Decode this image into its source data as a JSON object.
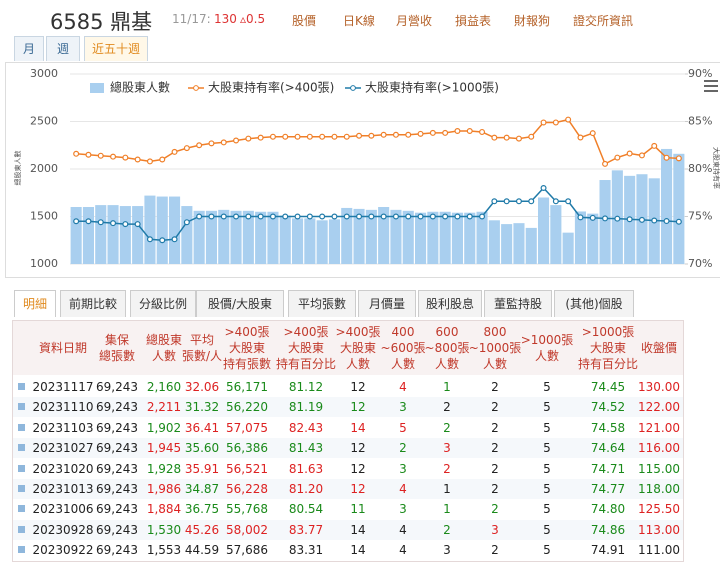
{
  "header": {
    "title": "6585 鼎基",
    "date": "11/17:",
    "price": "130",
    "change": "▵0.5",
    "links": [
      "股價",
      "日K線",
      "月營收",
      "損益表",
      "財報狗",
      "證交所資訊"
    ]
  },
  "period_tabs": [
    "月",
    "週",
    "近五十週"
  ],
  "chart_data": {
    "type": "bar-line",
    "y_label": "總股東人數",
    "y2_label": "大股東持有率",
    "ylim": [
      1000,
      3000
    ],
    "yticks": [
      1000,
      1500,
      2000,
      2500,
      3000
    ],
    "y2lim": [
      70,
      90
    ],
    "y2ticks": [
      {
        "value": 70,
        "label": "70%"
      },
      {
        "value": 75,
        "label": "75%"
      },
      {
        "value": 80,
        "label": "80%"
      },
      {
        "value": 85,
        "label": "85%"
      },
      {
        "value": 90,
        "label": "90%"
      }
    ],
    "series": [
      {
        "name": "總股東人數",
        "type": "bar",
        "color": "#a9cfef",
        "values": [
          1600,
          1600,
          1620,
          1620,
          1610,
          1610,
          1720,
          1710,
          1710,
          1610,
          1560,
          1560,
          1570,
          1560,
          1560,
          1550,
          1550,
          1510,
          1480,
          1480,
          1460,
          1470,
          1590,
          1580,
          1570,
          1600,
          1570,
          1560,
          1540,
          1550,
          1550,
          1540,
          1540,
          1550,
          1460,
          1420,
          1430,
          1380,
          1700,
          1620,
          1330,
          1553,
          1530,
          1884,
          1986,
          1928,
          1945,
          1902,
          2211,
          2160
        ]
      },
      {
        "name": "大股東持有率(>400張)",
        "type": "line",
        "axis": "y2",
        "color": "#f07f28",
        "values": [
          81.6,
          81.5,
          81.4,
          81.3,
          81.2,
          81.0,
          80.8,
          81.0,
          81.8,
          82.2,
          82.5,
          82.7,
          82.8,
          83.0,
          83.2,
          83.3,
          83.4,
          83.4,
          83.4,
          83.4,
          83.4,
          83.4,
          83.4,
          83.5,
          83.5,
          83.6,
          83.6,
          83.6,
          83.7,
          83.8,
          83.8,
          84.0,
          84.0,
          83.9,
          83.3,
          83.3,
          83.2,
          83.4,
          84.9,
          84.9,
          85.2,
          83.31,
          83.77,
          80.54,
          81.2,
          81.63,
          81.43,
          82.43,
          81.19,
          81.12
        ]
      },
      {
        "name": "大股東持有率(>1000張)",
        "type": "line",
        "axis": "y2",
        "color": "#1f7aa8",
        "values": [
          74.5,
          74.5,
          74.4,
          74.3,
          74.2,
          74.2,
          72.6,
          72.5,
          72.6,
          74.4,
          75.0,
          75.0,
          75.0,
          75.0,
          75.0,
          75.0,
          75.0,
          75.0,
          75.0,
          75.0,
          75.0,
          75.0,
          75.0,
          75.0,
          75.0,
          75.0,
          75.0,
          75.0,
          75.0,
          75.0,
          75.0,
          75.0,
          75.0,
          75.0,
          76.6,
          76.6,
          76.6,
          76.6,
          78.0,
          76.6,
          76.6,
          74.91,
          74.86,
          74.8,
          74.77,
          74.71,
          74.64,
          74.58,
          74.52,
          74.45
        ]
      }
    ]
  },
  "table_tabs": [
    "明細",
    "前期比較",
    "分級比例",
    "股價/大股東",
    "平均張數",
    "月價量",
    "股利股息",
    "董監持股",
    "(其他)個股"
  ],
  "table": {
    "columns": [
      "資料日期",
      "集保\n總張數",
      "總股東\n人數",
      "平均\n張數/人",
      ">400張\n大股東\n持有張數",
      ">400張\n大股東\n持有百分比",
      ">400張\n大股東\n人數",
      "400\n~600張\n人數",
      "600\n~800張\n人數",
      "800\n~1000張\n人數",
      ">1000張\n人數",
      ">1000張\n大股東\n持有百分比",
      "收盤價"
    ],
    "rows": [
      [
        "20231117",
        "69,243",
        "2,160",
        "32.06",
        "56,171",
        "81.12",
        "12",
        "4",
        "1",
        "2",
        "5",
        "74.45",
        "130.00"
      ],
      [
        "20231110",
        "69,243",
        "2,211",
        "31.32",
        "56,220",
        "81.19",
        "12",
        "3",
        "2",
        "2",
        "5",
        "74.52",
        "122.00"
      ],
      [
        "20231103",
        "69,243",
        "1,902",
        "36.41",
        "57,075",
        "82.43",
        "14",
        "5",
        "2",
        "2",
        "5",
        "74.58",
        "121.00"
      ],
      [
        "20231027",
        "69,243",
        "1,945",
        "35.60",
        "56,386",
        "81.43",
        "12",
        "2",
        "3",
        "2",
        "5",
        "74.64",
        "116.00"
      ],
      [
        "20231020",
        "69,243",
        "1,928",
        "35.91",
        "56,521",
        "81.63",
        "12",
        "3",
        "2",
        "2",
        "5",
        "74.71",
        "115.00"
      ],
      [
        "20231013",
        "69,243",
        "1,986",
        "34.87",
        "56,228",
        "81.20",
        "12",
        "4",
        "1",
        "2",
        "5",
        "74.77",
        "118.00"
      ],
      [
        "20231006",
        "69,243",
        "1,884",
        "36.75",
        "55,768",
        "80.54",
        "11",
        "3",
        "1",
        "2",
        "5",
        "74.80",
        "125.50"
      ],
      [
        "20230928",
        "69,243",
        "1,530",
        "45.26",
        "58,002",
        "83.77",
        "14",
        "4",
        "2",
        "3",
        "5",
        "74.86",
        "113.00"
      ],
      [
        "20230922",
        "69,243",
        "1,553",
        "44.59",
        "57,686",
        "83.31",
        "14",
        "4",
        "3",
        "2",
        "5",
        "74.91",
        "111.00"
      ]
    ]
  }
}
